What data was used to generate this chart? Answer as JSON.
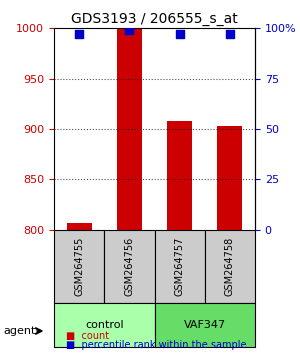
{
  "title": "GDS3193 / 206555_s_at",
  "samples": [
    "GSM264755",
    "GSM264756",
    "GSM264757",
    "GSM264758"
  ],
  "groups": [
    "control",
    "control",
    "VAF347",
    "VAF347"
  ],
  "group_labels": [
    "control",
    "VAF347"
  ],
  "group_colors": [
    "#aaffaa",
    "#44ee44"
  ],
  "bar_color": "#cc0000",
  "dot_color": "#0000cc",
  "counts": [
    807,
    999,
    908,
    903
  ],
  "percentile_ranks": [
    97,
    99,
    97,
    97
  ],
  "ylim": [
    800,
    1000
  ],
  "yticks_left": [
    800,
    850,
    900,
    950,
    1000
  ],
  "yticks_right": [
    0,
    25,
    50,
    75,
    100
  ],
  "ylabel_left_color": "#cc0000",
  "ylabel_right_color": "#0000cc",
  "legend_count_color": "#cc0000",
  "legend_dot_color": "#0000cc",
  "legend_count_label": "count",
  "legend_dot_label": "percentile rank within the sample",
  "agent_label": "agent",
  "grid_style": "dotted"
}
